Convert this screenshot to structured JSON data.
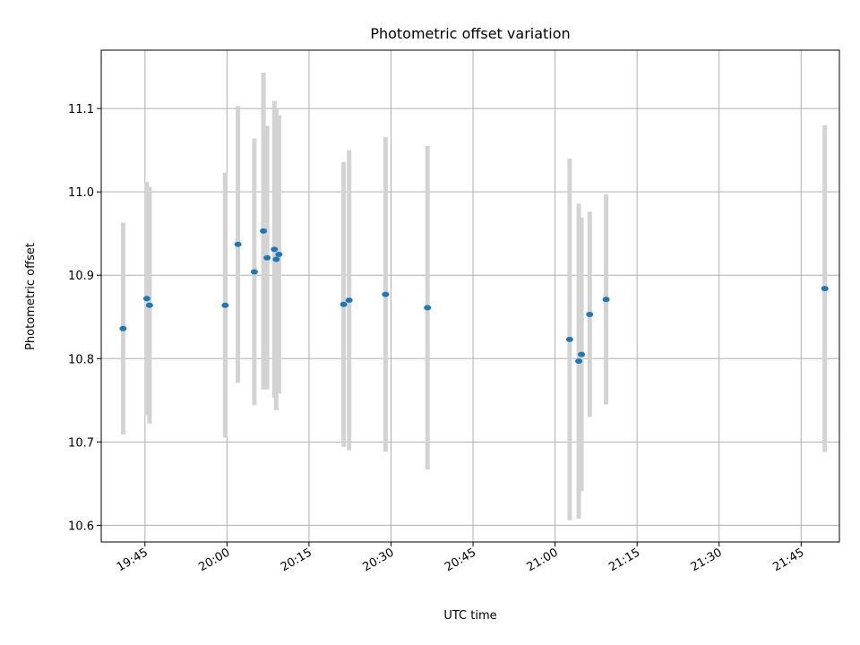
{
  "chart_data": {
    "type": "scatter",
    "title": "Photometric offset variation",
    "xlabel": "UTC time",
    "ylabel": "Photometric offset",
    "x_axis": {
      "kind": "time",
      "range": [
        "19:37",
        "21:52"
      ],
      "ticks": [
        "19:45",
        "20:00",
        "20:15",
        "20:30",
        "20:45",
        "21:00",
        "21:15",
        "21:30",
        "21:45"
      ]
    },
    "y_axis": {
      "range": [
        10.58,
        11.17
      ],
      "ticks": [
        "10.6",
        "10.7",
        "10.8",
        "10.9",
        "11.0",
        "11.1"
      ]
    },
    "grid": true,
    "marker_color": "#1f77b4",
    "errorbar_color": "#d3d3d3",
    "points": [
      {
        "t": "19:41:00",
        "y": 10.836,
        "err": 0.127
      },
      {
        "t": "19:45:20",
        "y": 10.872,
        "err": 0.14
      },
      {
        "t": "19:45:50",
        "y": 10.864,
        "err": 0.142
      },
      {
        "t": "19:59:40",
        "y": 10.864,
        "err": 0.159
      },
      {
        "t": "20:02:00",
        "y": 10.937,
        "err": 0.166
      },
      {
        "t": "20:05:00",
        "y": 10.904,
        "err": 0.16
      },
      {
        "t": "20:06:40",
        "y": 10.953,
        "err": 0.19
      },
      {
        "t": "20:07:20",
        "y": 10.921,
        "err": 0.158
      },
      {
        "t": "20:08:40",
        "y": 10.931,
        "err": 0.178
      },
      {
        "t": "20:09:00",
        "y": 10.919,
        "err": 0.181
      },
      {
        "t": "20:09:30",
        "y": 10.925,
        "err": 0.167
      },
      {
        "t": "20:21:20",
        "y": 10.865,
        "err": 0.171
      },
      {
        "t": "20:22:20",
        "y": 10.87,
        "err": 0.18
      },
      {
        "t": "20:29:00",
        "y": 10.877,
        "err": 0.189
      },
      {
        "t": "20:36:40",
        "y": 10.861,
        "err": 0.194
      },
      {
        "t": "21:02:40",
        "y": 10.823,
        "err": 0.217
      },
      {
        "t": "21:04:20",
        "y": 10.797,
        "err": 0.189
      },
      {
        "t": "21:04:50",
        "y": 10.805,
        "err": 0.164
      },
      {
        "t": "21:06:20",
        "y": 10.853,
        "err": 0.123
      },
      {
        "t": "21:09:20",
        "y": 10.871,
        "err": 0.126
      },
      {
        "t": "21:49:20",
        "y": 10.884,
        "err": 0.196
      }
    ]
  }
}
